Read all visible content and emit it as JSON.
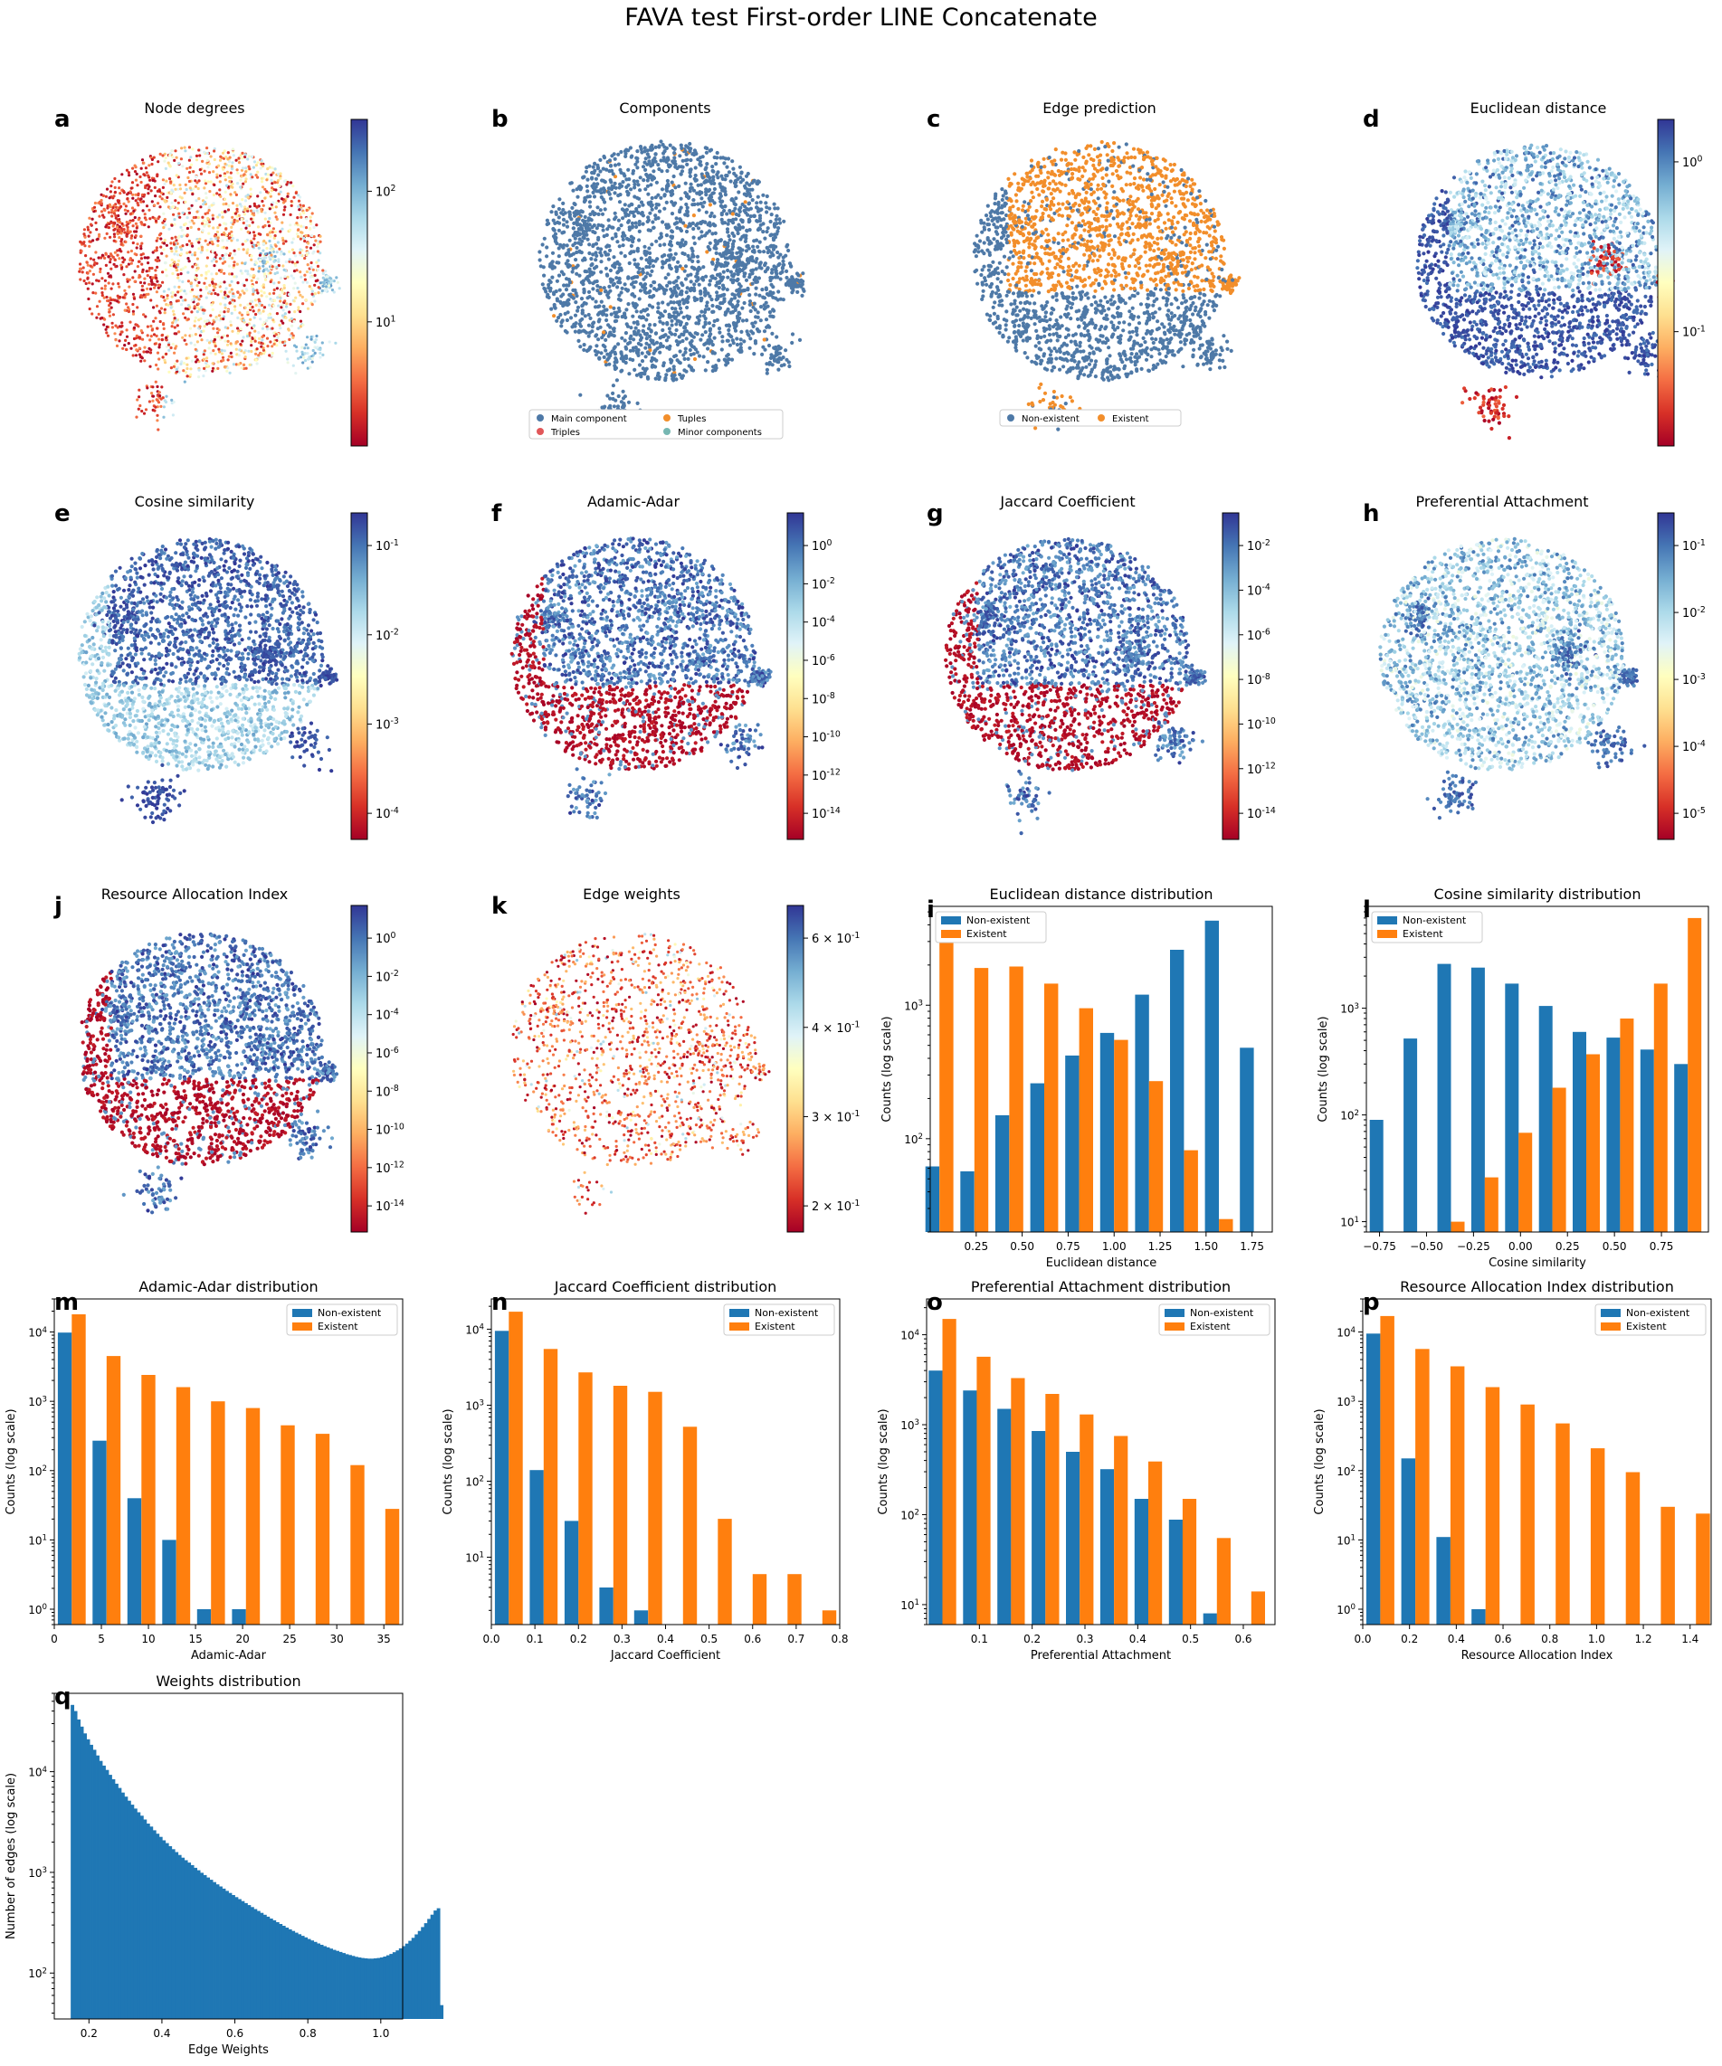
{
  "figure": {
    "title": "FAVA test First-order LINE Concatenate"
  },
  "colors": {
    "blue": "#1f77b4",
    "orange": "#ff7f0e",
    "tab_blue": "#4e79a7",
    "tab_orange": "#f28e2b",
    "tab_red": "#e15759",
    "tab_teal": "#76b7b2",
    "red_dark": "#b2182b",
    "navy": "#313695"
  },
  "scatter_panels": [
    {
      "letter": "a",
      "title": "Node degrees",
      "kind": "colormap",
      "colorbar_ticks": [
        "10^2",
        "10^1"
      ],
      "tone": "node_degrees"
    },
    {
      "letter": "b",
      "title": "Components",
      "kind": "categorical",
      "legend": [
        "Main component",
        "Tuples",
        "Triples",
        "Minor components"
      ],
      "legend_colors": [
        "#4e79a7",
        "#f28e2b",
        "#e15759",
        "#76b7b2"
      ],
      "tone": "components"
    },
    {
      "letter": "c",
      "title": "Edge prediction",
      "kind": "categorical",
      "legend": [
        "Non-existent",
        "Existent"
      ],
      "legend_colors": [
        "#4e79a7",
        "#f28e2b"
      ],
      "tone": "edge_prediction"
    },
    {
      "letter": "d",
      "title": "Euclidean distance",
      "kind": "colormap",
      "colorbar_ticks": [
        "10^0",
        "10^-1"
      ],
      "tone": "euclidean"
    },
    {
      "letter": "e",
      "title": "Cosine similarity",
      "kind": "colormap",
      "colorbar_ticks": [
        "10^-1",
        "10^-2",
        "10^-3",
        "10^-4"
      ],
      "tone": "cosine"
    },
    {
      "letter": "f",
      "title": "Adamic-Adar",
      "kind": "colormap",
      "colorbar_ticks": [
        "10^0",
        "10^-2",
        "10^-4",
        "10^-6",
        "10^-8",
        "10^-10",
        "10^-12",
        "10^-14"
      ],
      "tone": "split"
    },
    {
      "letter": "g",
      "title": "Jaccard Coefficient",
      "kind": "colormap",
      "colorbar_ticks": [
        "10^-2",
        "10^-4",
        "10^-6",
        "10^-8",
        "10^-10",
        "10^-12",
        "10^-14"
      ],
      "tone": "split"
    },
    {
      "letter": "h",
      "title": "Preferential Attachment",
      "kind": "colormap",
      "colorbar_ticks": [
        "10^-1",
        "10^-2",
        "10^-3",
        "10^-4",
        "10^-5"
      ],
      "tone": "pref"
    },
    {
      "letter": "j",
      "title": "Resource Allocation Index",
      "kind": "colormap",
      "colorbar_ticks": [
        "10^0",
        "10^-2",
        "10^-4",
        "10^-6",
        "10^-8",
        "10^-10",
        "10^-12",
        "10^-14"
      ],
      "tone": "split"
    },
    {
      "letter": "k",
      "title": "Edge weights",
      "kind": "colormap",
      "colorbar_ticks": [
        "6 × 10^-1",
        "4 × 10^-1",
        "3 × 10^-1",
        "2 × 10^-1"
      ],
      "tone": "weights"
    }
  ],
  "chart_data": [
    {
      "letter": "i",
      "type": "bar",
      "title": "Euclidean distance distribution",
      "xlabel": "Euclidean distance",
      "ylabel": "Counts (log scale)",
      "log_y": true,
      "xlim": [
        0.0,
        1.86
      ],
      "ylim": [
        20,
        5500
      ],
      "xticks": [
        0.25,
        0.5,
        0.75,
        1.0,
        1.25,
        1.5,
        1.75
      ],
      "xtick_labels": [
        "0.25",
        "0.50",
        "0.75",
        "1.00",
        "1.25",
        "1.50",
        "1.75"
      ],
      "yticks": [
        100,
        1000
      ],
      "ytick_labels": [
        "10^2",
        "10^3"
      ],
      "legend": "top-left",
      "bin_centers": [
        0.05,
        0.24,
        0.43,
        0.62,
        0.81,
        1.0,
        1.19,
        1.38,
        1.57,
        1.76
      ],
      "series": [
        {
          "name": "Non-existent",
          "values": [
            62,
            57,
            150,
            260,
            420,
            620,
            1200,
            2600,
            4300,
            480
          ]
        },
        {
          "name": "Existent",
          "values": [
            3000,
            1900,
            1950,
            1450,
            950,
            550,
            270,
            82,
            25,
            null
          ]
        }
      ]
    },
    {
      "letter": "l",
      "type": "bar",
      "title": "Cosine similarity distribution",
      "xlabel": "Cosine similarity",
      "ylabel": "Counts (log scale)",
      "log_y": true,
      "xlim": [
        -0.82,
        1.0
      ],
      "ylim": [
        8,
        9000
      ],
      "xticks": [
        -0.75,
        -0.5,
        -0.25,
        0.0,
        0.25,
        0.5,
        0.75
      ],
      "xtick_labels": [
        "−0.75",
        "−0.50",
        "−0.25",
        "0.00",
        "0.25",
        "0.50",
        "0.75"
      ],
      "yticks": [
        10,
        100,
        1000
      ],
      "ytick_labels": [
        "10^1",
        "10^2",
        "10^3"
      ],
      "legend": "top-left",
      "bin_centers": [
        -0.73,
        -0.55,
        -0.37,
        -0.19,
        -0.01,
        0.17,
        0.35,
        0.53,
        0.71,
        0.89
      ],
      "series": [
        {
          "name": "Non-existent",
          "values": [
            90,
            520,
            2600,
            2400,
            1700,
            1050,
            600,
            530,
            410,
            300
          ]
        },
        {
          "name": "Existent",
          "values": [
            null,
            null,
            10,
            26,
            68,
            180,
            370,
            800,
            1700,
            7000
          ]
        }
      ]
    },
    {
      "letter": "m",
      "type": "bar",
      "title": "Adamic-Adar distribution",
      "xlabel": "Adamic-Adar",
      "ylabel": "Counts (log scale)",
      "log_y": true,
      "xlim": [
        0,
        37
      ],
      "ylim": [
        0.6,
        30000
      ],
      "xticks": [
        0,
        5,
        10,
        15,
        20,
        25,
        30,
        35
      ],
      "xtick_labels": [
        "0",
        "5",
        "10",
        "15",
        "20",
        "25",
        "30",
        "35"
      ],
      "yticks": [
        1,
        10,
        100,
        1000,
        10000
      ],
      "ytick_labels": [
        "10^0",
        "10^1",
        "10^2",
        "10^3",
        "10^4"
      ],
      "legend": "top-right",
      "bin_centers": [
        1.85,
        5.55,
        9.25,
        12.95,
        16.65,
        20.35,
        24.05,
        27.75,
        31.45,
        35.15
      ],
      "series": [
        {
          "name": "Non-existent",
          "values": [
            9800,
            270,
            40,
            10,
            1,
            1,
            null,
            null,
            null,
            null
          ]
        },
        {
          "name": "Existent",
          "values": [
            18000,
            4500,
            2400,
            1600,
            1000,
            800,
            450,
            340,
            120,
            28
          ]
        }
      ]
    },
    {
      "letter": "n",
      "type": "bar",
      "title": "Jaccard Coefficient distribution",
      "xlabel": "Jaccard Coefficient",
      "ylabel": "Counts (log scale)",
      "log_y": true,
      "xlim": [
        0,
        0.8
      ],
      "ylim": [
        1.3,
        25000
      ],
      "xticks": [
        0.0,
        0.1,
        0.2,
        0.3,
        0.4,
        0.5,
        0.6,
        0.7,
        0.8
      ],
      "xtick_labels": [
        "0.0",
        "0.1",
        "0.2",
        "0.3",
        "0.4",
        "0.5",
        "0.6",
        "0.7",
        "0.8"
      ],
      "yticks": [
        10,
        100,
        1000,
        10000
      ],
      "ytick_labels": [
        "10^1",
        "10^2",
        "10^3",
        "10^4"
      ],
      "legend": "top-right",
      "bin_centers": [
        0.04,
        0.12,
        0.2,
        0.28,
        0.36,
        0.44,
        0.52,
        0.6,
        0.68,
        0.76
      ],
      "series": [
        {
          "name": "Non-existent",
          "values": [
            9500,
            140,
            30,
            4,
            2,
            null,
            null,
            null,
            null,
            null
          ]
        },
        {
          "name": "Existent",
          "values": [
            17000,
            5500,
            2700,
            1800,
            1500,
            520,
            32,
            6,
            6,
            2
          ]
        }
      ]
    },
    {
      "letter": "o",
      "type": "bar",
      "title": "Preferential Attachment distribution",
      "xlabel": "Preferential Attachment",
      "ylabel": "Counts (log scale)",
      "log_y": true,
      "xlim": [
        0.0,
        0.66
      ],
      "ylim": [
        6,
        25000
      ],
      "xticks": [
        0.1,
        0.2,
        0.3,
        0.4,
        0.5,
        0.6
      ],
      "xtick_labels": [
        "0.1",
        "0.2",
        "0.3",
        "0.4",
        "0.5",
        "0.6"
      ],
      "yticks": [
        10,
        100,
        1000,
        10000
      ],
      "ytick_labels": [
        "10^1",
        "10^2",
        "10^3",
        "10^4"
      ],
      "legend": "top-right",
      "bin_centers": [
        0.03,
        0.095,
        0.16,
        0.225,
        0.29,
        0.355,
        0.42,
        0.485,
        0.55,
        0.615
      ],
      "series": [
        {
          "name": "Non-existent",
          "values": [
            4000,
            2400,
            1500,
            850,
            500,
            320,
            150,
            88,
            8,
            null
          ]
        },
        {
          "name": "Existent",
          "values": [
            15000,
            5700,
            3300,
            2200,
            1300,
            750,
            390,
            150,
            55,
            14
          ]
        }
      ]
    },
    {
      "letter": "p",
      "type": "bar",
      "title": "Resource Allocation Index distribution",
      "xlabel": "Resource Allocation Index",
      "ylabel": "Counts (log scale)",
      "log_y": true,
      "xlim": [
        0,
        1.49
      ],
      "ylim": [
        0.6,
        30000
      ],
      "xticks": [
        0.0,
        0.2,
        0.4,
        0.6,
        0.8,
        1.0,
        1.2,
        1.4
      ],
      "xtick_labels": [
        "0.0",
        "0.2",
        "0.4",
        "0.6",
        "0.8",
        "1.0",
        "1.2",
        "1.4"
      ],
      "yticks": [
        1,
        10,
        100,
        1000,
        10000
      ],
      "ytick_labels": [
        "10^0",
        "10^1",
        "10^2",
        "10^3",
        "10^4"
      ],
      "legend": "top-right",
      "bin_centers": [
        0.075,
        0.225,
        0.375,
        0.525,
        0.675,
        0.825,
        0.975,
        1.125,
        1.275,
        1.425
      ],
      "series": [
        {
          "name": "Non-existent",
          "values": [
            9500,
            150,
            11,
            1,
            null,
            null,
            null,
            null,
            null,
            null
          ]
        },
        {
          "name": "Existent",
          "values": [
            17000,
            5700,
            3200,
            1600,
            900,
            480,
            210,
            95,
            30,
            24
          ]
        }
      ]
    },
    {
      "letter": "q",
      "type": "histogram",
      "title": "Weights distribution",
      "xlabel": "Edge Weights",
      "ylabel": "Number of edges (log scale)",
      "log_y": true,
      "xlim": [
        0.105,
        1.06
      ],
      "ylim": [
        35,
        60000
      ],
      "xticks": [
        0.2,
        0.4,
        0.6,
        0.8,
        1.0
      ],
      "xtick_labels": [
        "0.2",
        "0.4",
        "0.6",
        "0.8",
        "1.0"
      ],
      "yticks": [
        100,
        1000,
        10000
      ],
      "ytick_labels": [
        "10^2",
        "10^3",
        "10^4"
      ],
      "bin_start": 0.15,
      "bin_width": 0.00865,
      "values": [
        46000,
        40000,
        33000,
        28000,
        24000,
        21000,
        18500,
        16500,
        14500,
        12800,
        11500,
        10400,
        9300,
        8400,
        7600,
        6900,
        6200,
        5650,
        5150,
        4700,
        4300,
        3950,
        3650,
        3350,
        3050,
        2850,
        2620,
        2420,
        2250,
        2080,
        1950,
        1820,
        1700,
        1590,
        1490,
        1400,
        1320,
        1250,
        1180,
        1110,
        1050,
        990,
        940,
        890,
        845,
        800,
        760,
        725,
        690,
        655,
        625,
        595,
        568,
        542,
        518,
        495,
        473,
        452,
        432,
        414,
        396,
        379,
        363,
        348,
        334,
        320,
        307,
        295,
        283,
        272,
        262,
        252,
        243,
        234,
        226,
        218,
        211,
        204,
        197,
        191,
        185,
        180,
        175,
        170,
        166,
        162,
        158,
        154,
        151,
        148,
        145,
        143,
        141,
        140,
        139,
        139,
        140,
        141,
        143,
        146,
        150,
        155,
        161,
        168,
        176,
        185,
        196,
        209,
        224,
        242,
        262,
        286,
        313,
        345,
        380,
        418,
        440,
        48
      ]
    }
  ],
  "panel_letters": [
    "a",
    "b",
    "c",
    "d",
    "e",
    "f",
    "g",
    "h",
    "i",
    "j",
    "k",
    "l",
    "m",
    "n",
    "o",
    "p",
    "q"
  ]
}
